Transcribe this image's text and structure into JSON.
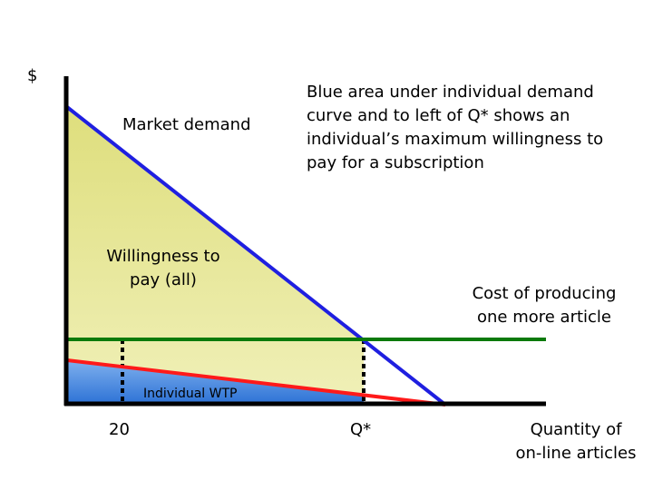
{
  "axes": {
    "y_label": "$",
    "x_label_line1": "Quantity of",
    "x_label_line2": "on-line articles"
  },
  "ticks": {
    "x_20": "20",
    "x_qstar": "Q*"
  },
  "curves": {
    "market_demand": "Market demand",
    "cost_line1": "Cost of producing",
    "cost_line2": "one more article"
  },
  "areas": {
    "wtp_all_line1": "Willingness to",
    "wtp_all_line2": "pay (all)",
    "individual_wtp": "Individual WTP"
  },
  "annotation": {
    "line1": "Blue area under individual demand",
    "line2": "curve and to left of Q* shows an",
    "line3": "individual’s maximum willingness to",
    "line4": "pay for a subscription"
  },
  "colors": {
    "market_demand": "#1f1fe0",
    "individual_demand": "#ff1a1a",
    "marginal_cost": "#0b7a0b",
    "willingness_area": "#e8e89a",
    "individual_area": "#4a8fe0",
    "axes": "#000000"
  }
}
